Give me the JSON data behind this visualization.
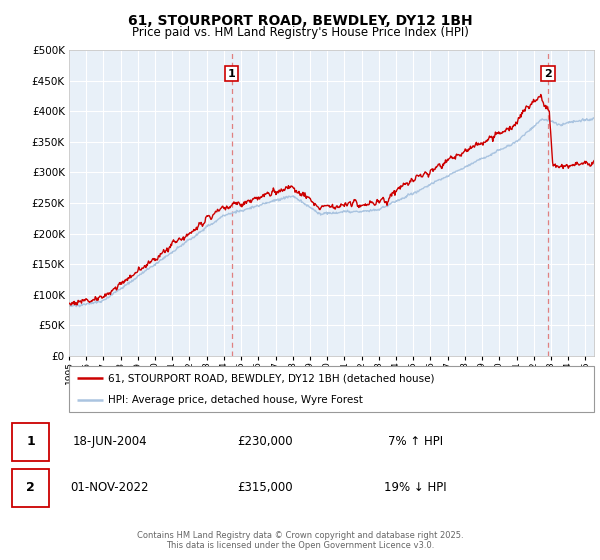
{
  "title_line1": "61, STOURPORT ROAD, BEWDLEY, DY12 1BH",
  "title_line2": "Price paid vs. HM Land Registry's House Price Index (HPI)",
  "ytick_values": [
    0,
    50000,
    100000,
    150000,
    200000,
    250000,
    300000,
    350000,
    400000,
    450000,
    500000
  ],
  "hpi_color": "#aac4e0",
  "price_color": "#cc0000",
  "vline_color": "#e08080",
  "marker1_date": 2004.46,
  "marker1_label": "1",
  "marker2_date": 2022.83,
  "marker2_label": "2",
  "legend_line1": "61, STOURPORT ROAD, BEWDLEY, DY12 1BH (detached house)",
  "legend_line2": "HPI: Average price, detached house, Wyre Forest",
  "table_row1": [
    "1",
    "18-JUN-2004",
    "£230,000",
    "7% ↑ HPI"
  ],
  "table_row2": [
    "2",
    "01-NOV-2022",
    "£315,000",
    "19% ↓ HPI"
  ],
  "footer": "Contains HM Land Registry data © Crown copyright and database right 2025.\nThis data is licensed under the Open Government Licence v3.0.",
  "plot_bg_color": "#e8f0f8",
  "grid_color": "#ffffff",
  "xmin": 1995,
  "xmax": 2025.5,
  "ymin": 0,
  "ymax": 500000
}
